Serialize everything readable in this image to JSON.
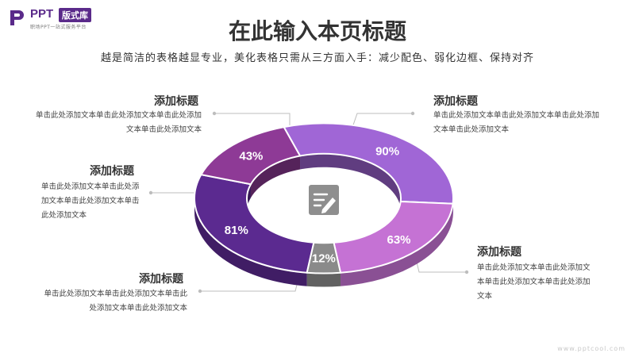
{
  "logo": {
    "mark": "P",
    "ppt": "PPT",
    "badge": "版式库",
    "sub": "职场PPT一站式服务平台"
  },
  "header": {
    "title": "在此输入本页标题",
    "subtitle": "越是简洁的表格越显专业，美化表格只需从三方面入手：减少配色、弱化边框、保持对齐"
  },
  "annotations": [
    {
      "title": "添加标题",
      "body": "单击此处添加文本单击此处添加文本单击此处添加文本单击此处添加文本"
    },
    {
      "title": "添加标题",
      "body": "单击此处添加文本单击此处添加文本单击此处添加文本单击此处添加文本"
    },
    {
      "title": "添加标题",
      "body": "单击此处添加文本单击此处添加文本单击此处添加文本单击此处添加文本"
    },
    {
      "title": "添加标题",
      "body": "单击此处添加文本单击此处添加文本单击此处添加文本单击此处添加文本"
    },
    {
      "title": "添加标题",
      "body": "单击此处添加文本单击此处添加文本单击此处添加文本单击此处添加文本"
    }
  ],
  "icons": {
    "center": "edit-icon"
  },
  "watermark": "www.pptcool.com",
  "chart_data": {
    "type": "pie",
    "style": "3d-donut",
    "segments": [
      {
        "label": "90%",
        "value": 90,
        "color": "#a066d6"
      },
      {
        "label": "63%",
        "value": 63,
        "color": "#c572d4"
      },
      {
        "label": "12%",
        "value": 12,
        "color": "#8a8a8a"
      },
      {
        "label": "81%",
        "value": 81,
        "color": "#5b2a90"
      },
      {
        "label": "43%",
        "value": 43,
        "color": "#8e3a96"
      }
    ]
  }
}
